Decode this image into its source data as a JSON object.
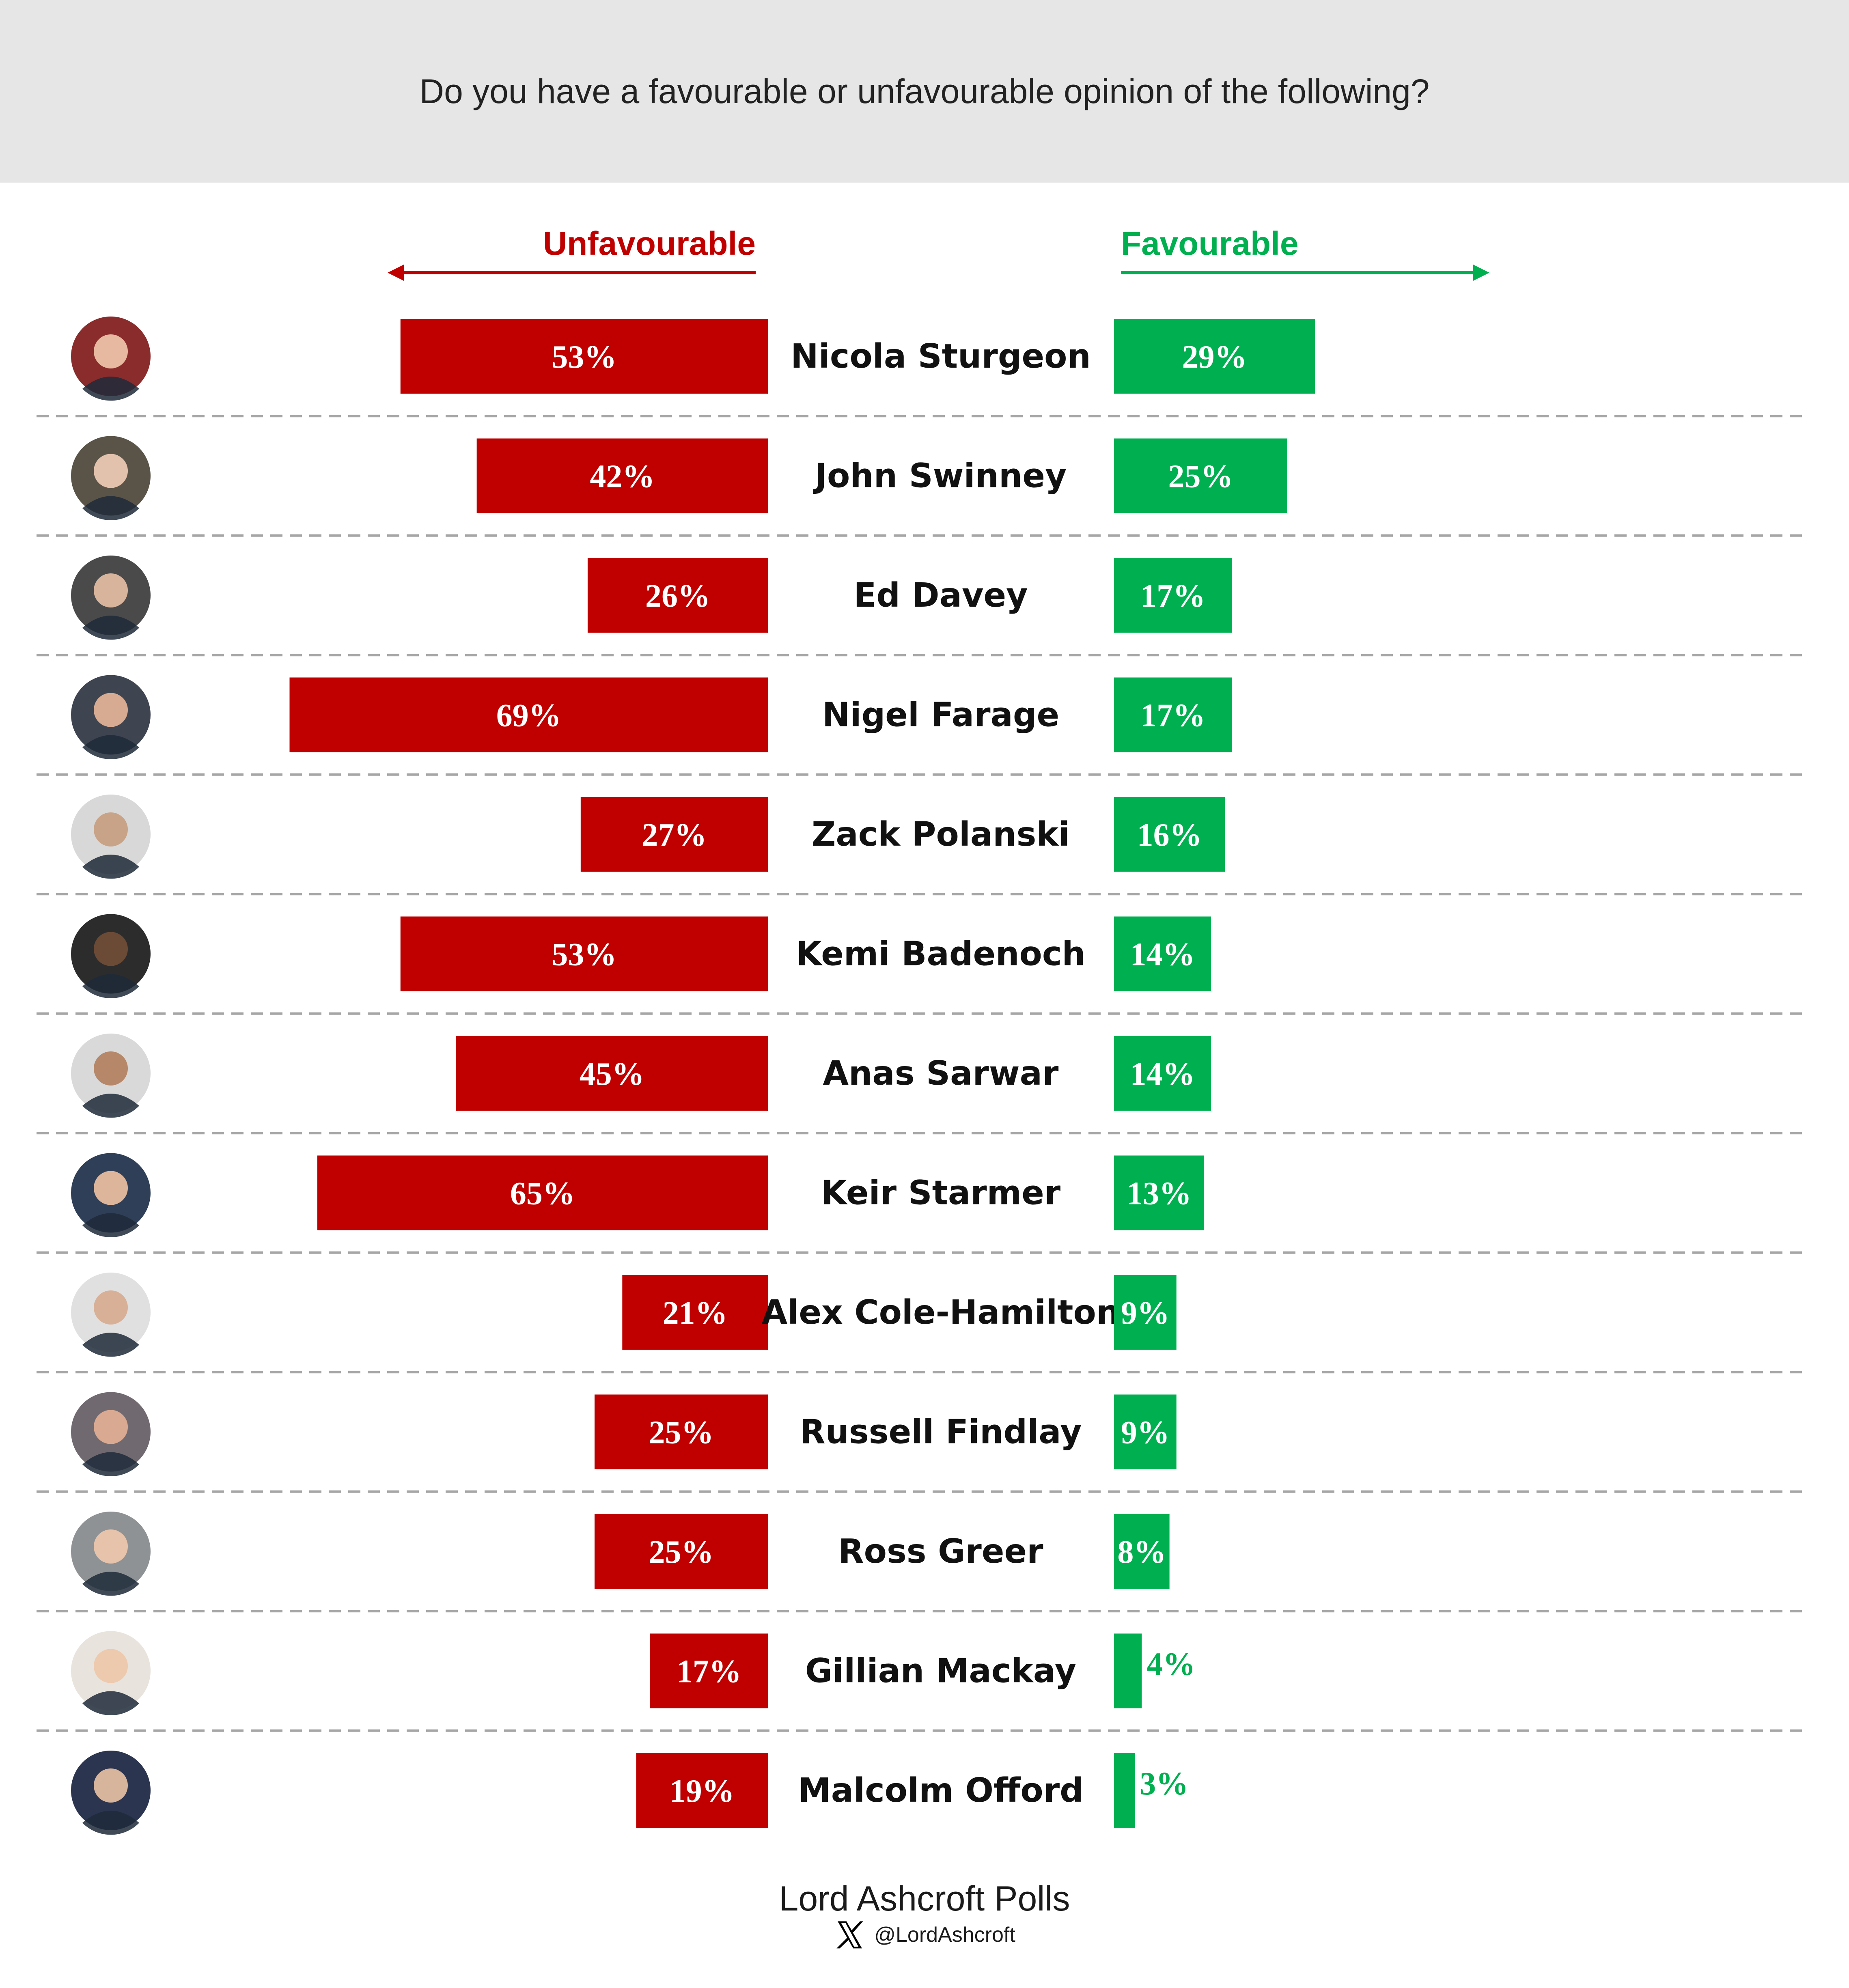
{
  "question": "Do you have a favourable or unfavourable opinion of the following?",
  "headers": {
    "unfavourable": "Unfavourable",
    "favourable": "Favourable"
  },
  "colors": {
    "unfavourable": "#c00000",
    "favourable": "#00b050",
    "header_band": "#e6e6e6",
    "divider": "#a6a6a6"
  },
  "footer": {
    "title": "Lord Ashcroft Polls",
    "handle": "@LordAshcroft",
    "icon": "x-logo-icon"
  },
  "chart_data": {
    "type": "bar",
    "orientation": "horizontal-diverging",
    "value_format": "{v}%",
    "categories": [
      "Nicola Sturgeon",
      "John Swinney",
      "Ed Davey",
      "Nigel Farage",
      "Zack Polanski",
      "Kemi Badenoch",
      "Anas Sarwar",
      "Keir Starmer",
      "Alex Cole-Hamilton",
      "Russell Findlay",
      "Ross Greer",
      "Gillian Mackay",
      "Malcolm Offord"
    ],
    "series": [
      {
        "name": "Unfavourable",
        "direction": "left",
        "values": [
          53,
          42,
          26,
          69,
          27,
          53,
          45,
          65,
          21,
          25,
          25,
          17,
          19
        ]
      },
      {
        "name": "Favourable",
        "direction": "right",
        "values": [
          29,
          25,
          17,
          17,
          16,
          14,
          14,
          13,
          9,
          9,
          8,
          4,
          3
        ]
      }
    ]
  }
}
